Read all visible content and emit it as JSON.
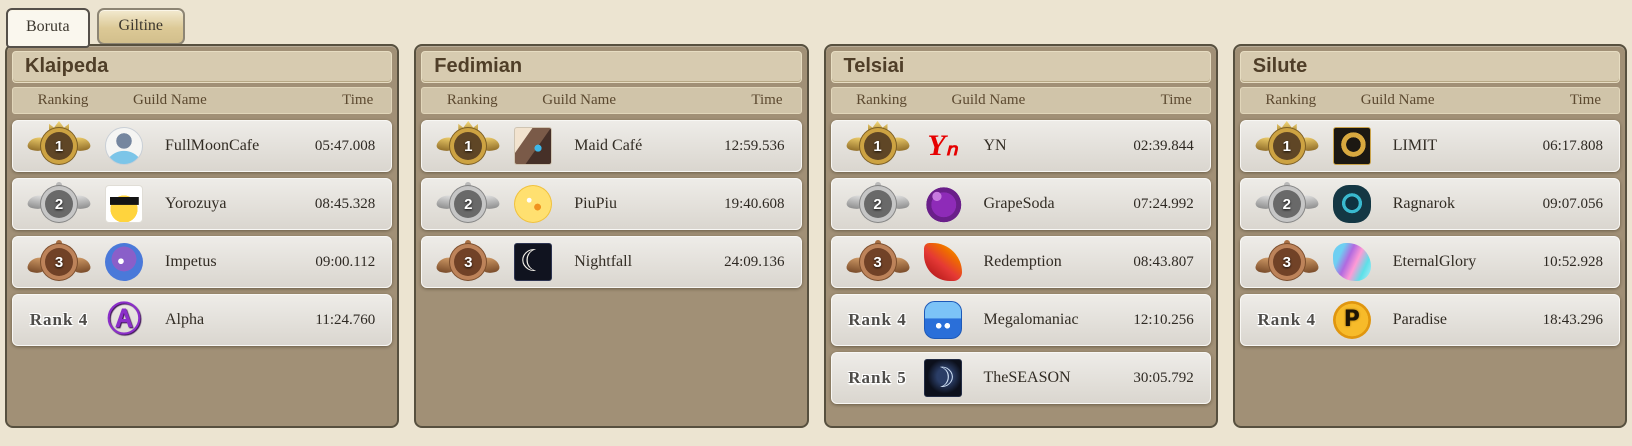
{
  "tabs": [
    {
      "label": "Boruta",
      "active": true
    },
    {
      "label": "Giltine",
      "active": false
    }
  ],
  "table_headers": {
    "ranking": "Ranking",
    "guild": "Guild Name",
    "time": "Time"
  },
  "colors": {
    "page_bg": "#ece4d1",
    "panel_bg": "#a19076",
    "title_bg": "#d7cbb0",
    "row_bg": "#e6e3dd",
    "gold": "#cda342",
    "silver": "#c6c6c6",
    "bronze": "#bd835a"
  },
  "servers": [
    {
      "name": "Klaipeda",
      "rows": [
        {
          "rank": 1,
          "medal": "gold",
          "rank_text": "",
          "guild": "FullMoonCafe",
          "time": "05:47.008",
          "emblem": {
            "bg": "radial-gradient(circle at 50% 118%, #7cc5e8 0 42%, rgba(0,0,0,0) 43%), radial-gradient(circle at 50% 36%, #75869f 0 26%, #f5f5f3 27%)",
            "radius": "50%",
            "border": "1px solid #c9cfd6",
            "glyph": "",
            "glyph_style": ""
          }
        },
        {
          "rank": 2,
          "medal": "silver",
          "rank_text": "",
          "guild": "Yorozuya",
          "time": "08:45.328",
          "emblem": {
            "bg": "linear-gradient(#141414, #141414) 50% 40% / 80% 22% no-repeat, radial-gradient(circle at 50% 64%, #ffd43d 0 46%, #ffffff 47%)",
            "radius": "4px",
            "border": "1px solid #e0ddd6",
            "glyph": "",
            "glyph_style": ""
          }
        },
        {
          "rank": 3,
          "medal": "bronze",
          "rank_text": "",
          "guild": "Impetus",
          "time": "09:00.112",
          "emblem": {
            "bg": "radial-gradient(circle at 42% 48%, #ffffff 0 9%, rgba(0,0,0,0) 10%), radial-gradient(circle at 50% 42%, #8a5fc9 0 42%, #4a79d9 43% 86%, rgba(0,0,0,0) 87%)",
            "radius": "50%",
            "border": "",
            "glyph": "",
            "glyph_style": ""
          }
        },
        {
          "rank": 4,
          "medal": "",
          "rank_text": "Rank 4",
          "guild": "Alpha",
          "time": "11:24.760",
          "emblem": {
            "bg": "none",
            "radius": "0",
            "border": "",
            "glyph": "Ⓐ",
            "glyph_style": "font-size:34px;font-weight:bold;color:#8b2fc9;text-shadow:1px 1px 1px #3a1050;"
          }
        }
      ]
    },
    {
      "name": "Fedimian",
      "rows": [
        {
          "rank": 1,
          "medal": "gold",
          "rank_text": "",
          "guild": "Maid Café",
          "time": "12:59.536",
          "emblem": {
            "bg": "radial-gradient(circle at 64% 56%, #3db7e8 0 11%, rgba(0,0,0,0) 12%), linear-gradient(125deg, #f2e3cf 0 28%, #7a5a48 29% 58%, #463028 59%)",
            "radius": "3px",
            "border": "1px solid #cfc4b2",
            "glyph": "",
            "glyph_style": ""
          }
        },
        {
          "rank": 2,
          "medal": "silver",
          "rank_text": "",
          "guild": "PiuPiu",
          "time": "19:40.608",
          "emblem": {
            "bg": "radial-gradient(circle at 40% 40%, #ffffff 0 7%, rgba(0,0,0,0) 8%), radial-gradient(circle at 62% 58%, #f0921e 0 10%, rgba(0,0,0,0) 11%), radial-gradient(circle at 50% 50%, #ffe070 0 66%, #f1c23e 67% 86%, rgba(0,0,0,0) 87%)",
            "radius": "50%",
            "border": "",
            "glyph": "",
            "glyph_style": ""
          }
        },
        {
          "rank": 3,
          "medal": "bronze",
          "rank_text": "",
          "guild": "Nightfall",
          "time": "24:09.136",
          "emblem": {
            "bg": "#10131f",
            "radius": "3px",
            "border": "1px solid #2c3350",
            "glyph": "☾",
            "glyph_style": "font-size:30px;color:#f5f2ea;"
          }
        }
      ]
    },
    {
      "name": "Telsiai",
      "rows": [
        {
          "rank": 1,
          "medal": "gold",
          "rank_text": "",
          "guild": "YN",
          "time": "02:39.844",
          "emblem": {
            "bg": "none",
            "radius": "0",
            "border": "",
            "glyph": "Yₙ",
            "glyph_style": "font-family:'Liberation Serif',serif;font-style:italic;font-weight:bold;font-size:30px;color:#e60000;"
          }
        },
        {
          "rank": 2,
          "medal": "silver",
          "rank_text": "",
          "guild": "GrapeSoda",
          "time": "07:24.992",
          "emblem": {
            "bg": "radial-gradient(circle at 34% 30%, #c77ae0 0 12%, rgba(0,0,0,0) 13%), radial-gradient(circle at 52% 52%, #8e2bb8 0 44%, #6a1f8a 45% 62%, rgba(0,0,0,0) 63%)",
            "radius": "42% 58% 46% 54%",
            "border": "",
            "glyph": "",
            "glyph_style": ""
          }
        },
        {
          "rank": 3,
          "medal": "bronze",
          "rank_text": "",
          "guild": "Redemption",
          "time": "08:43.807",
          "emblem": {
            "bg": "linear-gradient(40deg, #b71c1c 15%, #e53935 45%, #ef6c00 70%, #ffb300)",
            "radius": "15% 85% 25% 75%",
            "border": "",
            "glyph": "",
            "glyph_style": ""
          }
        },
        {
          "rank": 4,
          "medal": "",
          "rank_text": "Rank 4",
          "guild": "Megalomaniac",
          "time": "12:10.256",
          "emblem": {
            "bg": "radial-gradient(circle at 38% 66%, #ffffff 0 8%, rgba(0,0,0,0) 9%), radial-gradient(circle at 62% 66%, #ffffff 0 8%, rgba(0,0,0,0) 9%), linear-gradient(180deg, #7cc3f7 0 45%, #2a6fd9 46%)",
            "radius": "28%",
            "border": "1px solid #1d59b8",
            "glyph": "",
            "glyph_style": ""
          }
        },
        {
          "rank": 5,
          "medal": "",
          "rank_text": "Rank 5",
          "guild": "TheSEASON",
          "time": "30:05.792",
          "emblem": {
            "bg": "radial-gradient(circle at 55% 45%, #2a3d66 0 28%, #0c101c 62%)",
            "radius": "3px",
            "border": "1px solid #232c44",
            "glyph": "☽",
            "glyph_style": "font-size:28px;color:#cfe0f5;"
          }
        }
      ]
    },
    {
      "name": "Silute",
      "rows": [
        {
          "rank": 1,
          "medal": "gold",
          "rank_text": "",
          "guild": "LIMIT",
          "time": "06:17.808",
          "emblem": {
            "bg": "radial-gradient(circle at 54% 46%, rgba(0,0,0,0) 0 26%, #d9a93f 27% 44%, rgba(0,0,0,0) 45%), linear-gradient(#1c1812, #1c1812)",
            "radius": "3px",
            "border": "1px solid #caa34a",
            "glyph": "",
            "glyph_style": ""
          }
        },
        {
          "rank": 2,
          "medal": "silver",
          "rank_text": "",
          "guild": "Ragnarok",
          "time": "09:07.056",
          "emblem": {
            "bg": "radial-gradient(circle at 50% 48%, #0f3140 0 24%, #39b9cf 25% 36%, #143744 37% 88%, rgba(0,0,0,0) 89%)",
            "radius": "42%",
            "border": "",
            "glyph": "",
            "glyph_style": ""
          }
        },
        {
          "rank": 3,
          "medal": "bronze",
          "rank_text": "",
          "guild": "EternalGlory",
          "time": "10:52.928",
          "emblem": {
            "bg": "linear-gradient(115deg, #6ecff2 0 22%, #b06ae0 40%, #ff9ad5 58%, #5ce0e8 78%, #b7ecf9)",
            "radius": "35% 65% 40% 60%",
            "border": "",
            "glyph": "",
            "glyph_style": ""
          }
        },
        {
          "rank": 4,
          "medal": "",
          "rank_text": "Rank 4",
          "guild": "Paradise",
          "time": "18:43.296",
          "emblem": {
            "bg": "radial-gradient(circle at 50% 50%, #f7bb2a 0 60%, #e0960f 61% 78%, rgba(0,0,0,0) 79%)",
            "radius": "50%",
            "border": "",
            "glyph": "P",
            "glyph_style": "font-weight:bold;font-size:22px;color:#1d1405;text-shadow:0 0 2px #8a5e00;"
          }
        }
      ]
    }
  ]
}
